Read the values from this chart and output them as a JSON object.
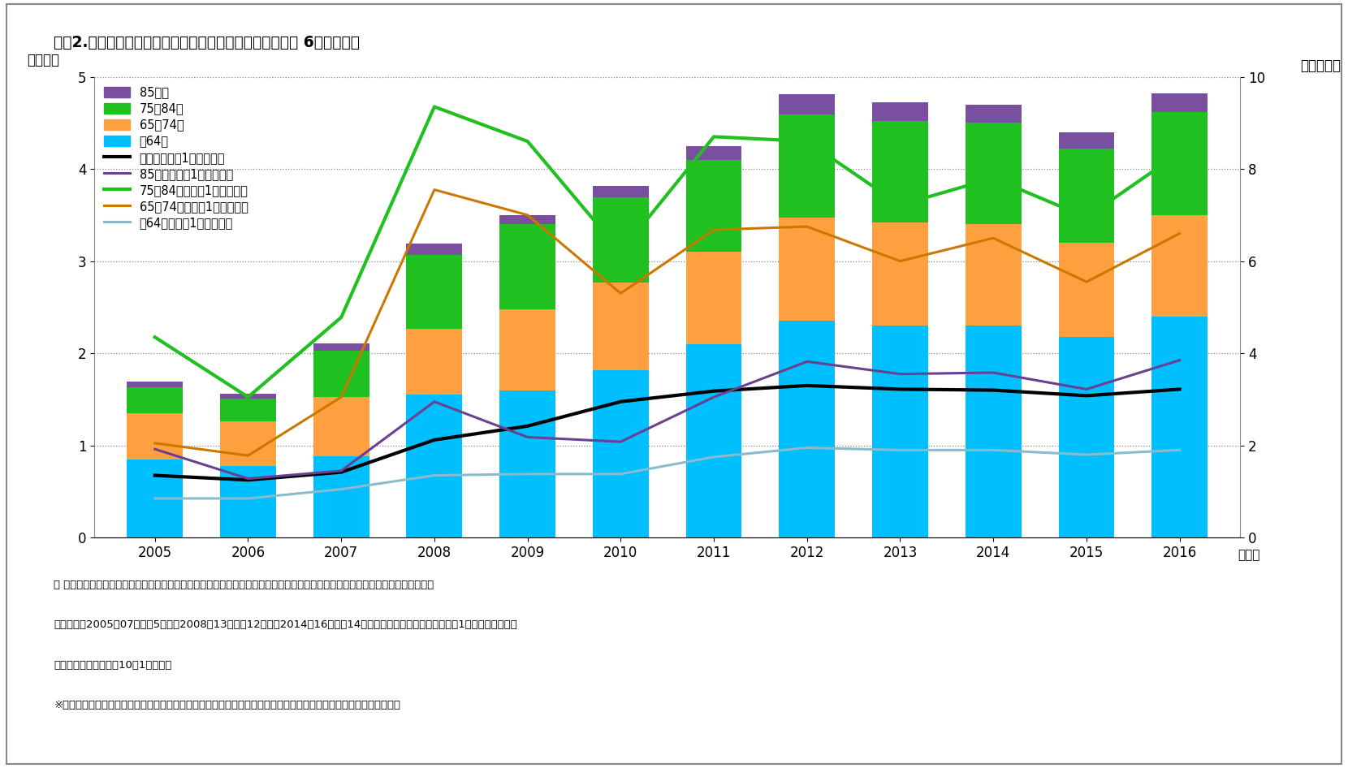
{
  "title": "図表2.　麻酔の時間加算項目の診療報酬点数推移（各年の 6月審査分）",
  "years": [
    2005,
    2006,
    2007,
    2008,
    2009,
    2010,
    2011,
    2012,
    2013,
    2014,
    2015,
    2016
  ],
  "bar_minus64": [
    0.85,
    0.78,
    0.88,
    1.55,
    1.6,
    1.82,
    2.1,
    2.35,
    2.3,
    2.3,
    2.18,
    2.4
  ],
  "bar_65_74": [
    0.5,
    0.48,
    0.65,
    0.72,
    0.88,
    0.95,
    1.0,
    1.12,
    1.12,
    1.1,
    1.02,
    1.1
  ],
  "bar_75_84": [
    0.28,
    0.25,
    0.5,
    0.8,
    0.92,
    0.92,
    1.0,
    1.12,
    1.1,
    1.1,
    1.02,
    1.12
  ],
  "bar_85plus": [
    0.06,
    0.05,
    0.08,
    0.12,
    0.1,
    0.13,
    0.15,
    0.22,
    0.2,
    0.2,
    0.18,
    0.2
  ],
  "line_all": [
    1.35,
    1.25,
    1.42,
    2.12,
    2.42,
    2.95,
    3.18,
    3.3,
    3.22,
    3.2,
    3.08,
    3.22
  ],
  "line_85plus": [
    1.92,
    1.28,
    1.45,
    2.95,
    2.18,
    2.08,
    3.05,
    3.82,
    3.55,
    3.58,
    3.22,
    3.85
  ],
  "line_75_84": [
    4.35,
    3.05,
    4.78,
    9.35,
    8.6,
    6.2,
    8.7,
    8.6,
    7.22,
    7.8,
    6.95,
    8.35
  ],
  "line_65_74": [
    2.05,
    1.78,
    3.05,
    7.55,
    7.0,
    5.3,
    6.68,
    6.75,
    6.0,
    6.5,
    5.55,
    6.6
  ],
  "line_minus64": [
    0.85,
    0.85,
    1.05,
    1.35,
    1.38,
    1.38,
    1.75,
    1.95,
    1.9,
    1.9,
    1.8,
    1.9
  ],
  "color_minus64": "#00BFFF",
  "color_65_74": "#FFA040",
  "color_75_84": "#20C020",
  "color_85plus": "#7B4FA0",
  "color_line_all": "#000000",
  "color_line_85plus": "#6A4090",
  "color_line_75_84": "#20C020",
  "color_line_65_74": "#CC7700",
  "color_line_minus64": "#88BBCC",
  "ylabel_left": "（億点）",
  "ylabel_right": "（点／人）",
  "xlabel": "（年）",
  "ylim_left": [
    0,
    5
  ],
  "ylim_right": [
    0,
    10
  ],
  "yticks_left": [
    0,
    1,
    2,
    3,
    4,
    5
  ],
  "yticks_right": [
    0,
    2,
    4,
    6,
    8,
    10
  ],
  "legend_bar": [
    "85歳－",
    "75－84歳",
    "65－74歳",
    "－64歳"
  ],
  "legend_line": [
    "全年齢（人口1人あたり）",
    "85歳－（人口1人あたり）",
    "75－84歳（人口1人あたり）",
    "65－74歳（人口1人あたり）",
    "－64歳（人口1人あたり）"
  ],
  "footnote1": "＊ 診療報酬制度は、偶数年度ごとに改定されてきており、その影響が反映されている点に注意が必要。なお、麻酔の時間加算項目",
  "footnote2": "　の数は、2005〜07年度は5項目、2008〜13年度は12項目、2014〜16年度は14項目、と増加してきている。人口1人あたりの点数に",
  "footnote3": "　用いた人口は、各年10月1日現在。",
  "footnote4": "※「社会医療診療行為別調査」「社会医療診療行為別統計」（厚生労働省）、人口推計（総務省）をもとに、筆者作成",
  "background_color": "#FFFFFF"
}
